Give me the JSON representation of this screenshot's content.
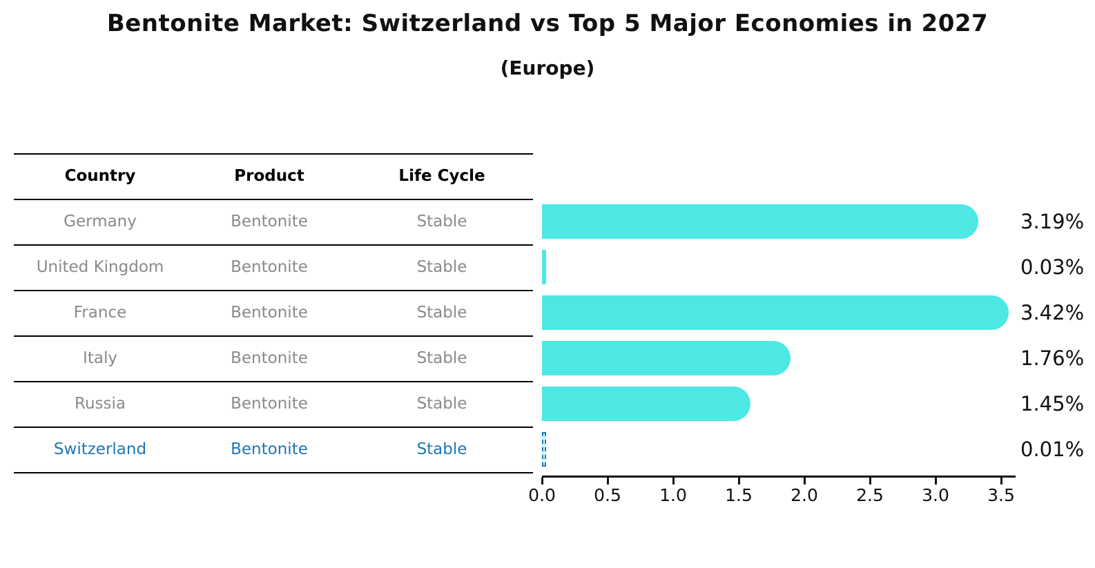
{
  "title": "Bentonite Market: Switzerland vs Top 5 Major Economies in 2027",
  "subtitle": "(Europe)",
  "table": {
    "headers": [
      "Country",
      "Product",
      "Life Cycle"
    ],
    "rows": [
      {
        "country": "Germany",
        "product": "Bentonite",
        "life_cycle": "Stable",
        "highlighted": false
      },
      {
        "country": "United Kingdom",
        "product": "Bentonite",
        "life_cycle": "Stable",
        "highlighted": false
      },
      {
        "country": "France",
        "product": "Bentonite",
        "life_cycle": "Stable",
        "highlighted": false
      },
      {
        "country": "Italy",
        "product": "Bentonite",
        "life_cycle": "Stable",
        "highlighted": false
      },
      {
        "country": "Russia",
        "product": "Bentonite",
        "life_cycle": "Stable",
        "highlighted": false
      },
      {
        "country": "Switzerland",
        "product": "Bentonite",
        "life_cycle": "Stable",
        "highlighted": true
      }
    ]
  },
  "chart_data": {
    "type": "bar",
    "orientation": "horizontal",
    "title": "Bentonite Market: Switzerland vs Top 5 Major Economies in 2027",
    "subtitle": "(Europe)",
    "categories": [
      "Germany",
      "United Kingdom",
      "France",
      "Italy",
      "Russia",
      "Switzerland"
    ],
    "values": [
      3.19,
      0.03,
      3.42,
      1.76,
      1.45,
      0.01
    ],
    "bar_labels": [
      "3.19%",
      "0.03%",
      "3.42%",
      "1.76%",
      "1.45%",
      "0.01%"
    ],
    "x_tick_labels": [
      "0.0",
      "0.5",
      "1.0",
      "1.5",
      "2.0",
      "2.5",
      "3.0",
      "3.5"
    ],
    "xlim": [
      0,
      3.6
    ],
    "grid": false,
    "legend": "none",
    "bar_color": "#4DE8E4",
    "highlight_color": "#1F77B4",
    "highlight_category": "Switzerland",
    "highlight_index": 5
  },
  "colors": {
    "background": "#FFFFFF",
    "header_text": "#000000",
    "row_text": "#8A8A8A",
    "highlight_text": "#1F77B4",
    "table_line": "#000000",
    "axis": "#111111"
  }
}
